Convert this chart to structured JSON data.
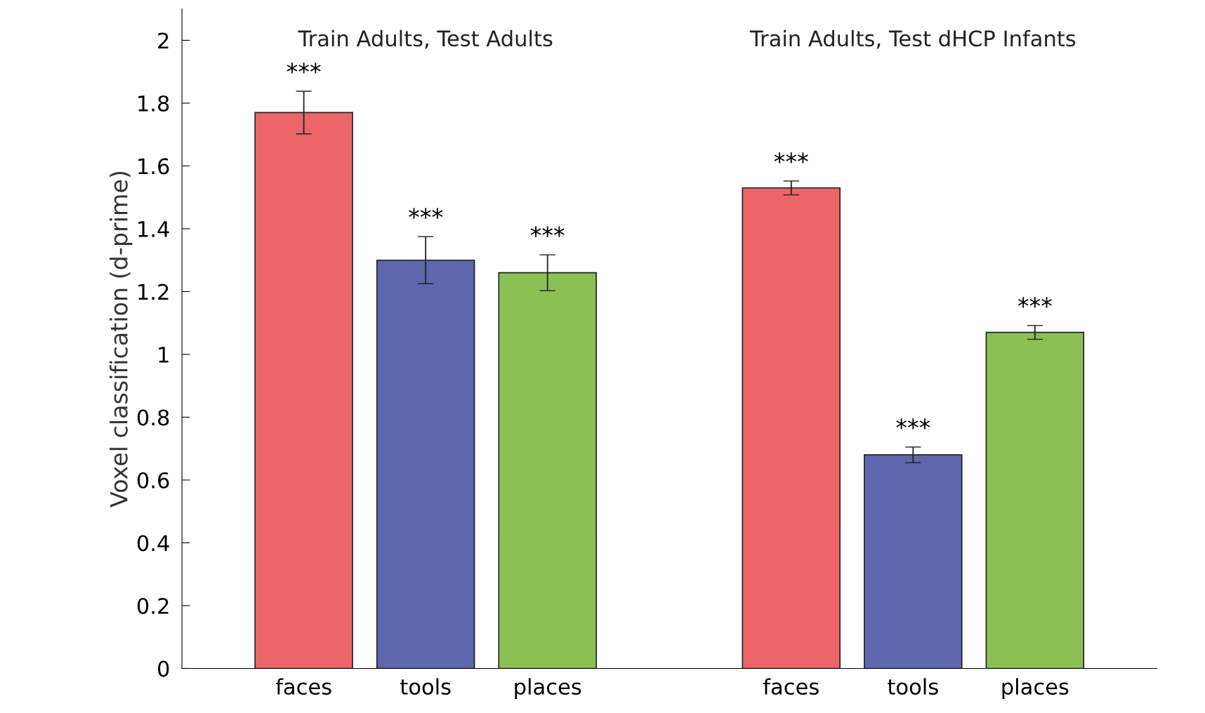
{
  "chart_data": {
    "type": "bar",
    "ylabel": "Voxel classification (d-prime)",
    "categories": [
      "faces",
      "tools",
      "places",
      null,
      "faces",
      "tools",
      "places"
    ],
    "values": [
      1.77,
      1.3,
      1.26,
      null,
      1.53,
      0.68,
      1.07
    ],
    "colors": [
      "#ec6568",
      "#5e66ad",
      "#8bc152",
      null,
      "#ec6568",
      "#5e66ad",
      "#8bc152"
    ],
    "errors": [
      0.068,
      0.075,
      0.057,
      null,
      0.022,
      0.025,
      0.022
    ],
    "value_labels": [
      "***",
      "***",
      "***",
      null,
      "***",
      "***",
      "***"
    ],
    "annotations": [
      "Train Adults, Test Adults",
      "Train Adults, Test dHCP Infants"
    ],
    "ylim": [
      0,
      2.1
    ],
    "yticks": [
      0,
      0.2,
      0.4,
      0.6,
      0.8,
      1,
      1.2,
      1.4,
      1.6,
      1.8,
      2
    ],
    "grid": false,
    "legend": false
  }
}
